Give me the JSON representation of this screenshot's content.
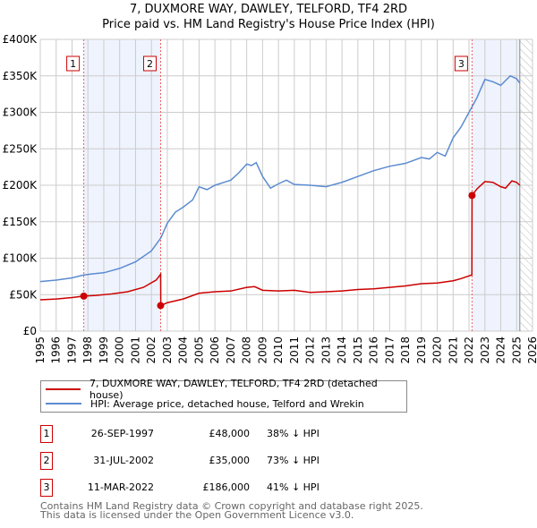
{
  "chart_data": {
    "type": "line",
    "title": "7, DUXMORE WAY, DAWLEY, TELFORD, TF4 2RD",
    "subtitle": "Price paid vs. HM Land Registry's House Price Index (HPI)",
    "xlim": [
      1995,
      2026
    ],
    "ylim": [
      0,
      400000
    ],
    "x_ticks": [
      "1995",
      "1996",
      "1997",
      "1998",
      "1999",
      "2000",
      "2001",
      "2002",
      "2003",
      "2004",
      "2005",
      "2006",
      "2007",
      "2008",
      "2009",
      "2010",
      "2011",
      "2012",
      "2013",
      "2014",
      "2015",
      "2016",
      "2017",
      "2018",
      "2019",
      "2020",
      "2021",
      "2022",
      "2023",
      "2024",
      "2025",
      "2026"
    ],
    "y_ticks": [
      {
        "v": 0,
        "label": "£0"
      },
      {
        "v": 50000,
        "label": "£50K"
      },
      {
        "v": 100000,
        "label": "£100K"
      },
      {
        "v": 150000,
        "label": "£150K"
      },
      {
        "v": 200000,
        "label": "£200K"
      },
      {
        "v": 250000,
        "label": "£250K"
      },
      {
        "v": 300000,
        "label": "£300K"
      },
      {
        "v": 350000,
        "label": "£350K"
      },
      {
        "v": 400000,
        "label": "£400K"
      }
    ],
    "grid": true,
    "series": [
      {
        "name": "7, DUXMORE WAY, DAWLEY, TELFORD, TF4 2RD (detached house)",
        "color": "#cc0000",
        "x": [
          1995,
          1996,
          1997,
          1997.74,
          1998.5,
          1999.5,
          2000.5,
          2001.5,
          2002.3,
          2002.58,
          2002.59,
          2003,
          2004,
          2005,
          2006,
          2007,
          2008,
          2008.5,
          2009,
          2010,
          2011,
          2012,
          2013,
          2014,
          2015,
          2016,
          2017,
          2018,
          2019,
          2020,
          2021,
          2021.5,
          2022.18,
          2022.19,
          2022.5,
          2023,
          2023.5,
          2024,
          2024.3,
          2024.7,
          2025,
          2025.2
        ],
        "y": [
          43000,
          44000,
          46000,
          48000,
          49000,
          51000,
          54000,
          60000,
          70000,
          78000,
          35000,
          39000,
          44000,
          52000,
          54000,
          55000,
          60000,
          61000,
          56000,
          55000,
          56000,
          53000,
          54000,
          55000,
          57000,
          58000,
          60000,
          62000,
          65000,
          66000,
          69000,
          72000,
          77000,
          186000,
          195000,
          205000,
          204000,
          198000,
          196000,
          206000,
          204000,
          200000
        ]
      },
      {
        "name": "HPI: Average price, detached house, Telford and Wrekin",
        "color": "#5b8bd0",
        "x": [
          1995,
          1996,
          1997,
          1997.74,
          1998.5,
          1999,
          2000,
          2001,
          2002,
          2002.6,
          2003,
          2003.5,
          2004,
          2004.6,
          2005,
          2005.5,
          2006,
          2007,
          2007.5,
          2008,
          2008.3,
          2008.6,
          2009,
          2009.5,
          2010,
          2010.5,
          2011,
          2012,
          2013,
          2014,
          2015,
          2016,
          2017,
          2018,
          2019,
          2019.5,
          2020,
          2020.5,
          2021,
          2021.5,
          2022,
          2022.5,
          2023,
          2023.5,
          2024,
          2024.6,
          2025,
          2025.2
        ],
        "y": [
          68000,
          70000,
          73000,
          77000,
          79000,
          80000,
          86000,
          95000,
          110000,
          128000,
          148000,
          163000,
          170000,
          180000,
          198000,
          194000,
          200000,
          207000,
          217000,
          229000,
          227000,
          231000,
          212000,
          196000,
          202000,
          207000,
          201000,
          200000,
          198000,
          204000,
          212000,
          220000,
          226000,
          230000,
          238000,
          236000,
          245000,
          240000,
          265000,
          280000,
          300000,
          320000,
          345000,
          342000,
          337000,
          350000,
          346000,
          340000
        ]
      }
    ],
    "sales": [
      {
        "id": "1",
        "x": 1997.74,
        "y": 48000,
        "date": "26-SEP-1997",
        "price": "£48,000",
        "hpi": "38% ↓ HPI"
      },
      {
        "id": "2",
        "x": 2002.58,
        "y": 35000,
        "date": "31-JUL-2002",
        "price": "£35,000",
        "hpi": "73% ↓ HPI"
      },
      {
        "id": "3",
        "x": 2022.19,
        "y": 186000,
        "date": "11-MAR-2022",
        "price": "£186,000",
        "hpi": "41% ↓ HPI"
      }
    ],
    "shaded_ranges": [
      [
        1997.74,
        2002.58
      ],
      [
        2022.19,
        2025.2
      ]
    ],
    "forecast_hatch_from": 2025.2
  },
  "footer": {
    "line1": "Contains HM Land Registry data © Crown copyright and database right 2025.",
    "line2": "This data is licensed under the Open Government Licence v3.0."
  }
}
